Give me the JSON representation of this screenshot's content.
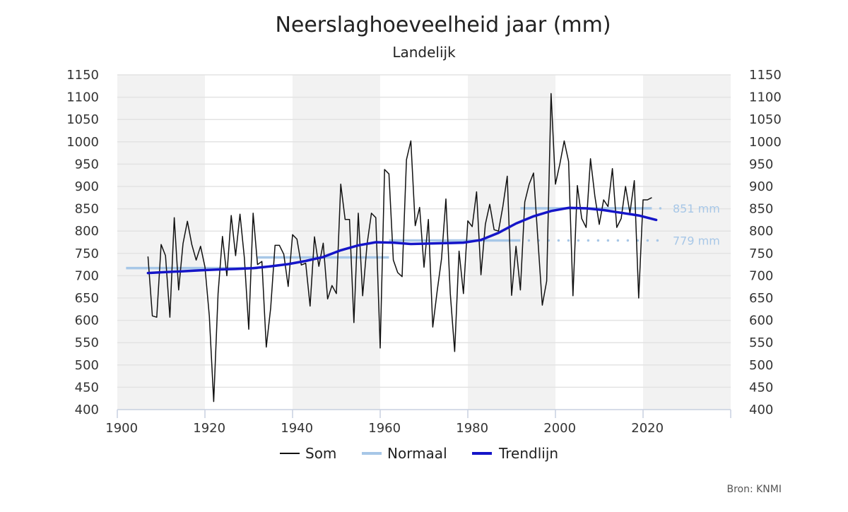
{
  "chart_data": {
    "type": "line",
    "title": "Neerslaghoeveelheid jaar (mm)",
    "subtitle": "Landelijk",
    "source": "Bron: KNMI",
    "xlim": [
      1899,
      2039
    ],
    "ylim": [
      400,
      1150
    ],
    "x_ticks": [
      1900,
      1920,
      1940,
      1960,
      1980,
      2000,
      2020
    ],
    "y_ticks": [
      400,
      450,
      500,
      550,
      600,
      650,
      700,
      750,
      800,
      850,
      900,
      950,
      1000,
      1050,
      1100,
      1150
    ],
    "shaded_periods": [
      [
        1899,
        1919
      ],
      [
        1939,
        1959
      ],
      [
        1979,
        1999
      ],
      [
        2019,
        2039
      ]
    ],
    "grid": true,
    "legend_position": "bottom",
    "colors": {
      "som": "#111111",
      "normaal": "#a7c7e7",
      "trendlijn": "#1515c8",
      "shade": "#f2f2f2"
    },
    "series": [
      {
        "name": "Som",
        "x": [
          1906,
          1907,
          1908,
          1909,
          1910,
          1911,
          1912,
          1913,
          1914,
          1915,
          1916,
          1917,
          1918,
          1919,
          1920,
          1921,
          1922,
          1923,
          1924,
          1925,
          1926,
          1927,
          1928,
          1929,
          1930,
          1931,
          1932,
          1933,
          1934,
          1935,
          1936,
          1937,
          1938,
          1939,
          1940,
          1941,
          1942,
          1943,
          1944,
          1945,
          1946,
          1947,
          1948,
          1949,
          1950,
          1951,
          1952,
          1953,
          1954,
          1955,
          1956,
          1957,
          1958,
          1959,
          1960,
          1961,
          1962,
          1963,
          1964,
          1965,
          1966,
          1967,
          1968,
          1969,
          1970,
          1971,
          1972,
          1973,
          1974,
          1975,
          1976,
          1977,
          1978,
          1979,
          1980,
          1981,
          1982,
          1983,
          1984,
          1985,
          1986,
          1987,
          1988,
          1989,
          1990,
          1991,
          1992,
          1993,
          1994,
          1995,
          1996,
          1997,
          1998,
          1999,
          2000,
          2001,
          2002,
          2003,
          2004,
          2005,
          2006,
          2007,
          2008,
          2009,
          2010,
          2011,
          2012,
          2013,
          2014,
          2015,
          2016,
          2017,
          2018,
          2019,
          2020,
          2021
        ],
        "values": [
          743,
          610,
          607,
          770,
          745,
          607,
          830,
          668,
          772,
          822,
          770,
          735,
          766,
          720,
          610,
          418,
          660,
          788,
          700,
          835,
          745,
          838,
          740,
          580,
          840,
          725,
          732,
          540,
          627,
          768,
          768,
          748,
          676,
          792,
          782,
          724,
          728,
          632,
          787,
          721,
          773,
          648,
          678,
          660,
          905,
          826,
          826,
          595,
          840,
          655,
          770,
          840,
          830,
          538,
          938,
          928,
          735,
          707,
          698,
          960,
          1002,
          812,
          853,
          719,
          826,
          585,
          665,
          738,
          872,
          660,
          530,
          755,
          660,
          823,
          810,
          888,
          702,
          815,
          860,
          803,
          800,
          855,
          923,
          656,
          766,
          668,
          865,
          905,
          930,
          780,
          634,
          688,
          1108,
          905,
          950,
          1002,
          956,
          655,
          902,
          828,
          808,
          962,
          878,
          815,
          870,
          855,
          940,
          808,
          828,
          900,
          840,
          913,
          650,
          870,
          870,
          875
        ]
      },
      {
        "name": "Normaal",
        "segments": [
          {
            "x": [
              1901,
              1931
            ],
            "values": [
              717,
              717
            ]
          },
          {
            "x": [
              1931,
              1961
            ],
            "values": [
              741,
              741
            ]
          },
          {
            "x": [
              1961,
              1991
            ],
            "values": [
              779,
              779
            ],
            "label": "779 mm"
          },
          {
            "x": [
              1991,
              2021
            ],
            "values": [
              851,
              851
            ],
            "label": "851 mm"
          }
        ]
      },
      {
        "name": "Trendlijn",
        "x": [
          1906,
          1910,
          1914,
          1918,
          1922,
          1926,
          1930,
          1934,
          1938,
          1942,
          1946,
          1950,
          1954,
          1958,
          1962,
          1966,
          1970,
          1974,
          1978,
          1982,
          1986,
          1990,
          1994,
          1998,
          2002,
          2006,
          2010,
          2014,
          2018,
          2022
        ],
        "values": [
          706,
          708,
          710,
          712,
          714,
          715,
          717,
          721,
          726,
          733,
          742,
          757,
          768,
          775,
          774,
          771,
          772,
          773,
          774,
          780,
          796,
          817,
          833,
          845,
          852,
          851,
          847,
          841,
          835,
          825
        ]
      }
    ]
  }
}
